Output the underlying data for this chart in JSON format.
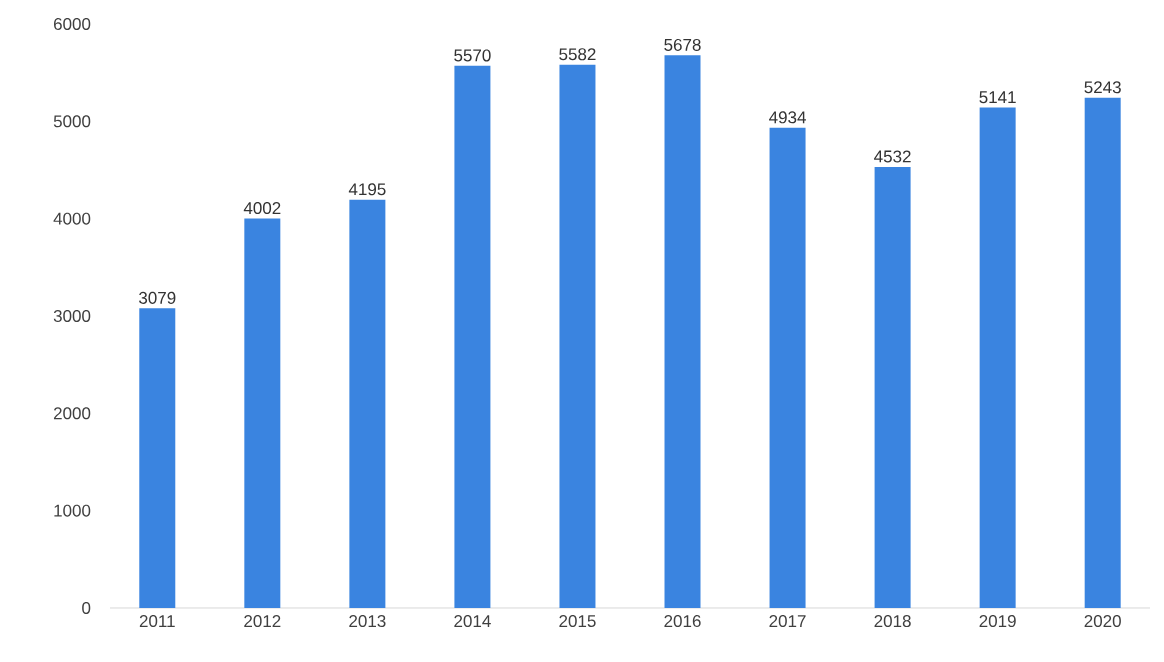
{
  "chart_data": {
    "type": "bar",
    "categories": [
      "2011",
      "2012",
      "2013",
      "2014",
      "2015",
      "2016",
      "2017",
      "2018",
      "2019",
      "2020"
    ],
    "values": [
      3079,
      4002,
      4195,
      5570,
      5582,
      5678,
      4934,
      4532,
      5141,
      5243
    ],
    "color": "#3a84e0",
    "ylim": [
      0,
      6000
    ],
    "yticks": [
      0,
      1000,
      2000,
      3000,
      4000,
      5000,
      6000
    ],
    "data_labels": true
  }
}
